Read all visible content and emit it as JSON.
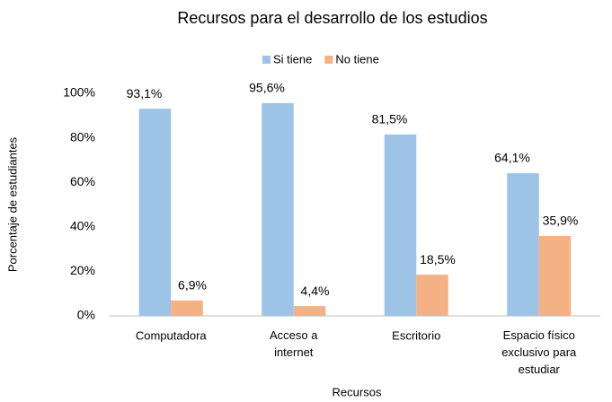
{
  "chart_data": {
    "type": "bar",
    "title": "Recursos para el desarrollo de los estudios",
    "xlabel": "Recursos",
    "ylabel": "Porcentaje de estudiantes",
    "categories": [
      "Computadora",
      "Acceso a internet",
      "Escritorio",
      "Espacio físico exclusivo para estudiar"
    ],
    "series": [
      {
        "name": "Si tiene",
        "color": "#9dc3e6",
        "values": [
          93.1,
          95.6,
          81.5,
          64.1
        ],
        "value_labels": [
          "93,1%",
          "95,6%",
          "81,5%",
          "64,1%"
        ]
      },
      {
        "name": "No tiene",
        "color": "#f4b183",
        "values": [
          6.9,
          4.4,
          18.5,
          35.9
        ],
        "value_labels": [
          "6,9%",
          "4,4%",
          "18,5%",
          "35,9%"
        ]
      }
    ],
    "ylim": [
      0,
      100
    ],
    "yticks": [
      {
        "value": 0,
        "label": "0%"
      },
      {
        "value": 20,
        "label": "20%"
      },
      {
        "value": 40,
        "label": "40%"
      },
      {
        "value": 60,
        "label": "60%"
      },
      {
        "value": 80,
        "label": "80%"
      },
      {
        "value": 100,
        "label": "100%"
      }
    ],
    "grid": false,
    "legend": "top"
  }
}
